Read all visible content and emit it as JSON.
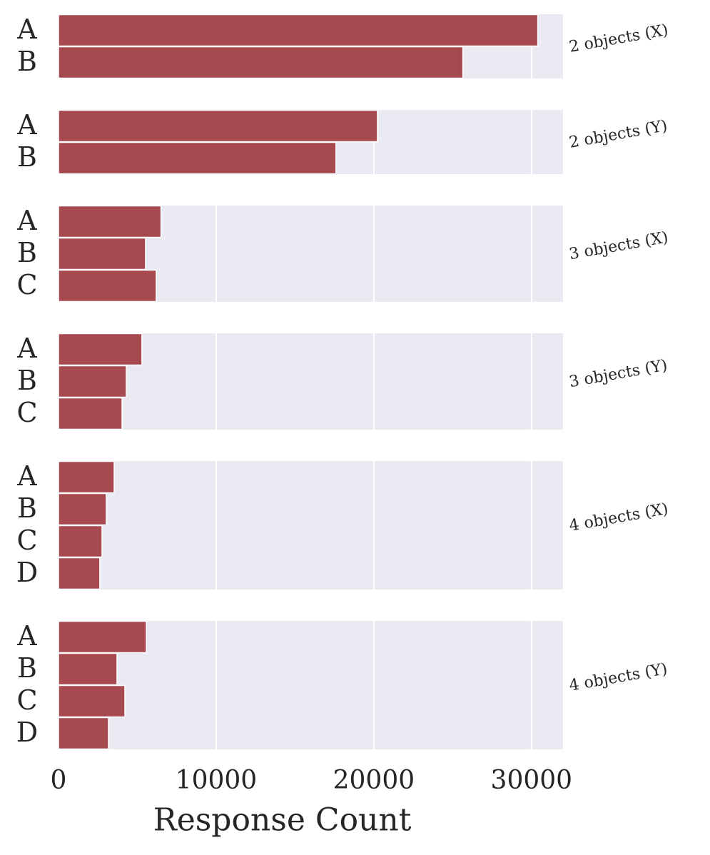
{
  "chart_data": [
    {
      "type": "bar",
      "panel_label": "2 objects (X)",
      "categories": [
        "A",
        "B"
      ],
      "values": [
        30400,
        25650
      ],
      "color": "#a64a50",
      "xlim": [
        0,
        32000
      ],
      "xticks": [
        0,
        10000,
        20000,
        30000
      ],
      "grid": true
    },
    {
      "type": "bar",
      "panel_label": "2 objects (Y)",
      "categories": [
        "A",
        "B"
      ],
      "values": [
        20230,
        17600
      ],
      "color": "#a64a50",
      "xlim": [
        0,
        32000
      ],
      "xticks": [
        0,
        10000,
        20000,
        30000
      ],
      "grid": true
    },
    {
      "type": "bar",
      "panel_label": "3 objects (X)",
      "categories": [
        "A",
        "B",
        "C"
      ],
      "values": [
        6500,
        5520,
        6200
      ],
      "color": "#a64a50",
      "xlim": [
        0,
        32000
      ],
      "xticks": [
        0,
        10000,
        20000,
        30000
      ],
      "grid": true
    },
    {
      "type": "bar",
      "panel_label": "3 objects (Y)",
      "categories": [
        "A",
        "B",
        "C"
      ],
      "values": [
        5290,
        4300,
        4030
      ],
      "color": "#a64a50",
      "xlim": [
        0,
        32000
      ],
      "xticks": [
        0,
        10000,
        20000,
        30000
      ],
      "grid": true
    },
    {
      "type": "bar",
      "panel_label": "4 objects (X)",
      "categories": [
        "A",
        "B",
        "C",
        "D"
      ],
      "values": [
        3530,
        3030,
        2760,
        2620
      ],
      "color": "#a64a50",
      "xlim": [
        0,
        32000
      ],
      "xticks": [
        0,
        10000,
        20000,
        30000
      ],
      "grid": true
    },
    {
      "type": "bar",
      "panel_label": "4 objects (Y)",
      "categories": [
        "A",
        "B",
        "C",
        "D"
      ],
      "values": [
        5570,
        3710,
        4210,
        3170
      ],
      "color": "#a64a50",
      "xlim": [
        0,
        32000
      ],
      "xticks": [
        0,
        10000,
        20000,
        30000
      ],
      "grid": true,
      "xlabel": "Response Count"
    }
  ]
}
